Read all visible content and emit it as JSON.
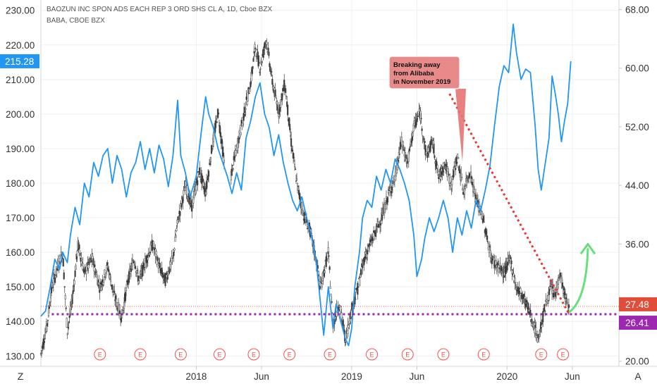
{
  "legend": {
    "line1": "BAOZUN INC SPON ADS EACH REP 3 ORD SHS CL A, 1D, Cboe BZX",
    "line2": "BABA, CBOE BZX"
  },
  "annotation": {
    "lines": [
      "Breaking away",
      "from Alibaba",
      "in November 2019"
    ]
  },
  "corner_labels": {
    "left": "Z",
    "right": "A"
  },
  "colors": {
    "baba_line": "#2196f3",
    "candle": "#3a3a3a",
    "trend_line": "#e53935",
    "support_line": "#9c27b0",
    "arrow": "#66e07a",
    "earnings": "#ef5350",
    "left_badge": "#2196f3",
    "right_badge_red": "#e04e3a",
    "right_badge_purple": "#9c27b0"
  },
  "chart_data": {
    "type": "line",
    "left_axis": {
      "ticks": [
        "230.00",
        "220.00",
        "210.00",
        "200.00",
        "190.00",
        "180.00",
        "170.00",
        "160.00",
        "150.00",
        "140.00",
        "130.00"
      ],
      "range": [
        127,
        233
      ],
      "current_label": "215.28",
      "current_value": 215.28
    },
    "right_axis": {
      "ticks": [
        "68.00",
        "60.00",
        "52.00",
        "44.00",
        "36.00",
        "28.00",
        "20.00"
      ],
      "range": [
        19.3,
        69.3
      ],
      "labels": [
        {
          "text": "27.48",
          "value": 27.48,
          "style": "red"
        },
        {
          "text": "26.41",
          "value": 26.41,
          "style": "purple"
        }
      ]
    },
    "x_axis": {
      "range": [
        2017.0,
        2020.72
      ],
      "ticks": [
        {
          "label": "2018",
          "t": 2018.0
        },
        {
          "label": "Jun",
          "t": 2018.42
        },
        {
          "label": "2019",
          "t": 2019.0
        },
        {
          "label": "Jun",
          "t": 2019.42
        },
        {
          "label": "2020",
          "t": 2020.0
        },
        {
          "label": "Jun",
          "t": 2020.42
        }
      ]
    },
    "earnings_marks": [
      2017.38,
      2017.64,
      2017.9,
      2018.15,
      2018.37,
      2018.6,
      2018.86,
      2019.13,
      2019.36,
      2019.59,
      2019.85,
      2020.22,
      2020.36
    ],
    "earnings_label": "E",
    "series": [
      {
        "name": "BABA",
        "axis": "left",
        "points": [
          [
            2017.0,
            141.5
          ],
          [
            2017.03,
            143
          ],
          [
            2017.06,
            150
          ],
          [
            2017.09,
            158
          ],
          [
            2017.12,
            155
          ],
          [
            2017.14,
            160
          ],
          [
            2017.17,
            157
          ],
          [
            2017.19,
            165
          ],
          [
            2017.22,
            173
          ],
          [
            2017.25,
            168
          ],
          [
            2017.28,
            180
          ],
          [
            2017.31,
            176
          ],
          [
            2017.34,
            186
          ],
          [
            2017.37,
            182
          ],
          [
            2017.4,
            188
          ],
          [
            2017.43,
            190
          ],
          [
            2017.46,
            180
          ],
          [
            2017.49,
            188
          ],
          [
            2017.52,
            184
          ],
          [
            2017.55,
            176
          ],
          [
            2017.58,
            183
          ],
          [
            2017.61,
            186
          ],
          [
            2017.64,
            192
          ],
          [
            2017.67,
            184
          ],
          [
            2017.7,
            190
          ],
          [
            2017.73,
            183
          ],
          [
            2017.76,
            191
          ],
          [
            2017.79,
            187
          ],
          [
            2017.82,
            179
          ],
          [
            2017.85,
            188
          ],
          [
            2017.88,
            204
          ],
          [
            2017.9,
            188
          ],
          [
            2017.93,
            183
          ],
          [
            2017.96,
            176
          ],
          [
            2018.0,
            182
          ],
          [
            2018.03,
            194
          ],
          [
            2018.06,
            205
          ],
          [
            2018.08,
            200
          ],
          [
            2018.11,
            196
          ],
          [
            2018.14,
            190
          ],
          [
            2018.17,
            186
          ],
          [
            2018.2,
            182
          ],
          [
            2018.23,
            177
          ],
          [
            2018.26,
            183
          ],
          [
            2018.29,
            178
          ],
          [
            2018.32,
            193
          ],
          [
            2018.35,
            198
          ],
          [
            2018.38,
            205
          ],
          [
            2018.41,
            209
          ],
          [
            2018.44,
            200
          ],
          [
            2018.47,
            196
          ],
          [
            2018.5,
            188
          ],
          [
            2018.53,
            194
          ],
          [
            2018.56,
            186
          ],
          [
            2018.59,
            180
          ],
          [
            2018.62,
            175
          ],
          [
            2018.65,
            172
          ],
          [
            2018.68,
            176
          ],
          [
            2018.71,
            170
          ],
          [
            2018.74,
            165
          ],
          [
            2018.77,
            158
          ],
          [
            2018.8,
            145
          ],
          [
            2018.82,
            136
          ],
          [
            2018.85,
            150
          ],
          [
            2018.88,
            138
          ],
          [
            2018.9,
            145
          ],
          [
            2018.93,
            140
          ],
          [
            2018.96,
            135
          ],
          [
            2018.98,
            133
          ],
          [
            2019.0,
            138
          ],
          [
            2019.02,
            150
          ],
          [
            2019.05,
            160
          ],
          [
            2019.07,
            170
          ],
          [
            2019.1,
            175
          ],
          [
            2019.13,
            173
          ],
          [
            2019.16,
            182
          ],
          [
            2019.19,
            178
          ],
          [
            2019.22,
            184
          ],
          [
            2019.25,
            180
          ],
          [
            2019.28,
            187
          ],
          [
            2019.31,
            184
          ],
          [
            2019.34,
            180
          ],
          [
            2019.37,
            175
          ],
          [
            2019.4,
            165
          ],
          [
            2019.42,
            153
          ],
          [
            2019.45,
            158
          ],
          [
            2019.47,
            164
          ],
          [
            2019.5,
            170
          ],
          [
            2019.53,
            166
          ],
          [
            2019.56,
            170
          ],
          [
            2019.59,
            175
          ],
          [
            2019.62,
            170
          ],
          [
            2019.65,
            160
          ],
          [
            2019.68,
            170
          ],
          [
            2019.71,
            165
          ],
          [
            2019.74,
            172
          ],
          [
            2019.77,
            167
          ],
          [
            2019.8,
            175
          ],
          [
            2019.83,
            172
          ],
          [
            2019.86,
            178
          ],
          [
            2019.89,
            185
          ],
          [
            2019.92,
            197
          ],
          [
            2019.95,
            208
          ],
          [
            2019.98,
            214
          ],
          [
            2020.01,
            212
          ],
          [
            2020.04,
            226
          ],
          [
            2020.06,
            218
          ],
          [
            2020.09,
            210
          ],
          [
            2020.12,
            213
          ],
          [
            2020.15,
            212
          ],
          [
            2020.18,
            197
          ],
          [
            2020.2,
            184
          ],
          [
            2020.22,
            178
          ],
          [
            2020.24,
            184
          ],
          [
            2020.27,
            193
          ],
          [
            2020.29,
            211
          ],
          [
            2020.31,
            206
          ],
          [
            2020.33,
            200
          ],
          [
            2020.35,
            192
          ],
          [
            2020.37,
            198
          ],
          [
            2020.39,
            203
          ],
          [
            2020.41,
            215.28
          ]
        ]
      }
    ],
    "trend_line": {
      "from": [
        2019.63,
        56.5
      ],
      "to": [
        2020.4,
        26.4
      ],
      "axis": "right"
    },
    "support_line": {
      "value": 26.41,
      "from_t": 2017.07,
      "to_t": 2020.72,
      "axis": "right"
    },
    "reference_line": {
      "value": 27.48,
      "axis": "right"
    }
  }
}
